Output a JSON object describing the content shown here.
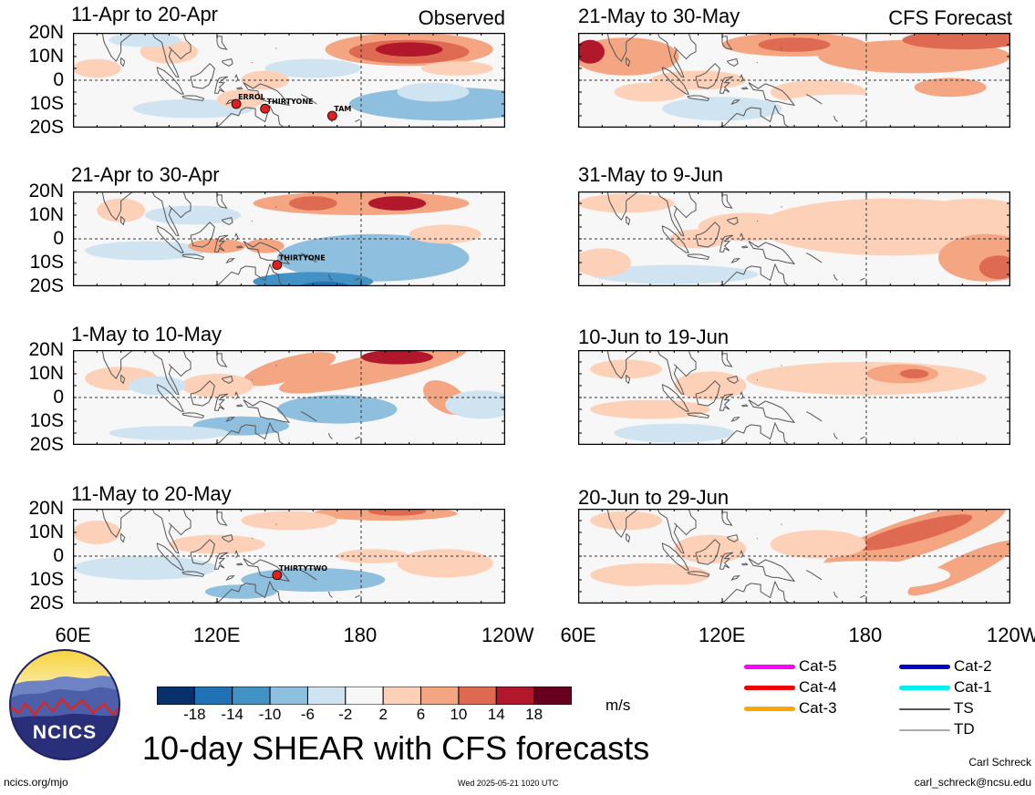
{
  "panels_left": [
    {
      "title": "11-Apr to 20-Apr",
      "corner": "Observed",
      "storms": [
        {
          "name": "ERROL",
          "lon": 128,
          "lat": -10
        },
        {
          "name": "THIRTYONE",
          "lon": 140,
          "lat": -12
        },
        {
          "name": "TAM",
          "lon": 168,
          "lat": -15
        }
      ]
    },
    {
      "title": "21-Apr to 30-Apr",
      "corner": "",
      "storms": [
        {
          "name": "THIRTYONE",
          "lon": 145,
          "lat": -11
        }
      ]
    },
    {
      "title": "1-May to 10-May",
      "corner": "",
      "storms": []
    },
    {
      "title": "11-May to 20-May",
      "corner": "",
      "storms": [
        {
          "name": "THIRTYTWO",
          "lon": 145,
          "lat": -8
        }
      ]
    }
  ],
  "panels_right": [
    {
      "title": "21-May to 30-May",
      "corner": "CFS Forecast"
    },
    {
      "title": "31-May to 9-Jun",
      "corner": ""
    },
    {
      "title": "10-Jun to 19-Jun",
      "corner": ""
    },
    {
      "title": "20-Jun to 29-Jun",
      "corner": ""
    }
  ],
  "lat_labels": [
    "20N",
    "10N",
    "0",
    "10S",
    "20S"
  ],
  "lon_labels": [
    "60E",
    "120E",
    "180",
    "120W"
  ],
  "colorbar": {
    "ticks": [
      "-18",
      "-14",
      "-10",
      "-6",
      "-2",
      "2",
      "6",
      "10",
      "14",
      "18"
    ],
    "colors": [
      "#08306b",
      "#2171b5",
      "#4292c6",
      "#8fbfdf",
      "#cfe3f1",
      "#f7f7f7",
      "#fdd0b8",
      "#f4a582",
      "#de6a52",
      "#b2182b",
      "#67001f"
    ],
    "units": "m/s"
  },
  "legend": [
    {
      "label": "Cat-5",
      "color": "#ff00ff"
    },
    {
      "label": "Cat-4",
      "color": "#ee0000"
    },
    {
      "label": "Cat-3",
      "color": "#ffa500"
    },
    {
      "label": "Cat-2",
      "color": "#0000cc"
    },
    {
      "label": "Cat-1",
      "color": "#00eeee"
    },
    {
      "label": "TS",
      "color": "#555555"
    },
    {
      "label": "TD",
      "color": "#aaaaaa"
    }
  ],
  "logo": {
    "text": "NCICS"
  },
  "main_title": "10-day SHEAR with CFS forecasts",
  "footer": {
    "url": "ncics.org/mjo",
    "timestamp": "Wed 2025-05-21 1020 UTC",
    "author": "Carl Schreck",
    "email": "carl_schreck@ncsu.edu"
  }
}
